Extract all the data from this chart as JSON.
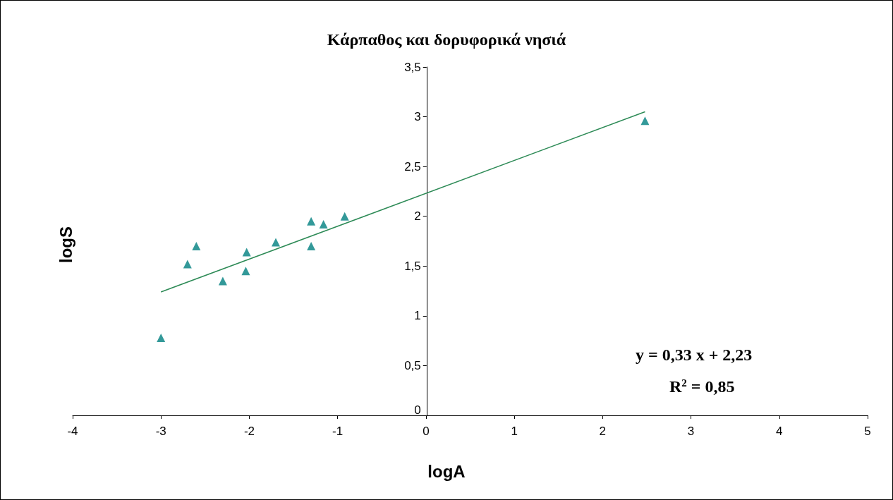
{
  "chart_data": {
    "type": "scatter",
    "title": "Κάρπαθος και δορυφορικά νησιά",
    "xlabel": "logA",
    "ylabel": "logS",
    "x": [
      -3.0,
      -2.7,
      -2.6,
      -2.3,
      -2.04,
      -2.03,
      -1.7,
      -1.3,
      -1.3,
      -1.16,
      -0.92,
      2.48
    ],
    "series": [
      {
        "color": "#008080",
        "marker": "triangle",
        "values": [
          0.78,
          1.52,
          1.7,
          1.35,
          1.45,
          1.64,
          1.74,
          1.7,
          1.95,
          1.92,
          2.0,
          2.96
        ]
      },
      {
        "type": "line",
        "color": "#2e8b57",
        "marker": "none",
        "x": [
          -3.0,
          2.48
        ],
        "values": [
          1.24,
          3.05
        ]
      }
    ],
    "xlim": [
      -4,
      5
    ],
    "xticks": [
      -4,
      -3,
      -2,
      -1,
      0,
      1,
      2,
      3,
      4,
      5
    ],
    "ylim": [
      0,
      3.5
    ],
    "yticks": [
      0,
      {
        "value": 0.5,
        "label": "0,5"
      },
      1,
      {
        "value": 1.5,
        "label": "1,5"
      },
      2,
      {
        "value": 2.5,
        "label": "2,5"
      },
      3,
      {
        "value": 3.5,
        "label": "3,5"
      }
    ],
    "annotations": [
      "y = 0,33 x + 2,23",
      "R$^{2}$ = 0,85"
    ]
  }
}
